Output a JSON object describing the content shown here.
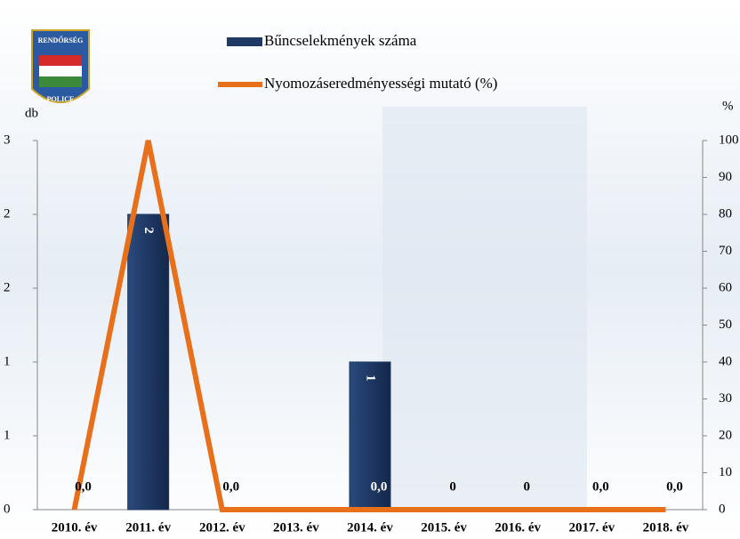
{
  "chart_data": {
    "type": "bar-line",
    "logo": {
      "top": "RENDŐRSÉG",
      "bottom": "POLICE"
    },
    "y_label": "db",
    "y2_label": "%",
    "categories": [
      "2010. év",
      "2011. év",
      "2012. év",
      "2013. év",
      "2014. év",
      "2015. év",
      "2016. év",
      "2017. év",
      "2018. év"
    ],
    "series": [
      {
        "name": "Bűncselekmények száma",
        "type": "bar",
        "color": "#1f3864",
        "values": [
          0,
          2.4,
          0,
          0,
          1.2,
          0,
          0,
          0,
          0
        ],
        "value_labels": [
          null,
          "2",
          null,
          null,
          "1",
          null,
          null,
          null,
          null
        ]
      },
      {
        "name": "Nyomozáseredményességi mutató (%)",
        "type": "line",
        "color": "#e8701a",
        "axis": "y2",
        "values": [
          0,
          100,
          0,
          0,
          0,
          0,
          0,
          0,
          0
        ],
        "value_labels": [
          "0,0",
          null,
          "0,0",
          null,
          "0,0",
          "0",
          "0",
          "0,0",
          "0,0"
        ]
      }
    ],
    "ylim": [
      0,
      3
    ],
    "yticks": [
      {
        "value": 0,
        "label": "0"
      },
      {
        "value": 0.6,
        "label": "1"
      },
      {
        "value": 1.2,
        "label": "1"
      },
      {
        "value": 1.8,
        "label": "2"
      },
      {
        "value": 2.4,
        "label": "2"
      },
      {
        "value": 3,
        "label": "3"
      }
    ],
    "y2lim": [
      0,
      100
    ],
    "y2ticks": [
      0,
      10,
      20,
      30,
      40,
      50,
      60,
      70,
      80,
      90,
      100
    ]
  }
}
